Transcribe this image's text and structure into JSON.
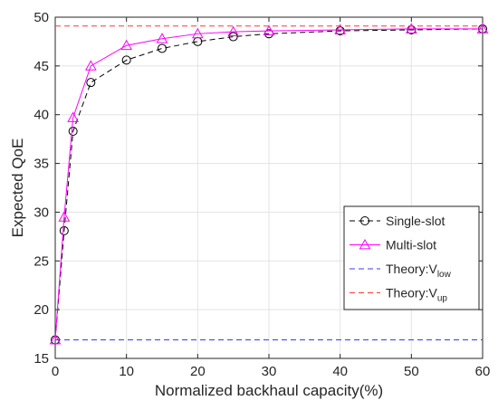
{
  "chart_data": {
    "type": "line",
    "title": "",
    "xlabel": "Normalized backhaul capacity(%)",
    "ylabel": "Expected QoE",
    "xlim": [
      0,
      60
    ],
    "ylim": [
      15,
      50
    ],
    "xticks": [
      0,
      10,
      20,
      30,
      40,
      50,
      60
    ],
    "yticks": [
      15,
      20,
      25,
      30,
      35,
      40,
      45,
      50
    ],
    "grid": true,
    "legend_position": "bottom-right",
    "series": [
      {
        "name": "Single-slot",
        "color": "#000000",
        "line_style": "dashed",
        "marker": "circle",
        "x": [
          0,
          1.25,
          2.5,
          5,
          10,
          15,
          20,
          25,
          30,
          40,
          50,
          60
        ],
        "y": [
          16.9,
          28.1,
          38.3,
          43.3,
          45.6,
          46.8,
          47.5,
          48.0,
          48.3,
          48.6,
          48.7,
          48.8
        ]
      },
      {
        "name": "Multi-slot",
        "color": "#ff00ff",
        "line_style": "solid",
        "marker": "triangle",
        "x": [
          0,
          1.25,
          2.5,
          5,
          10,
          15,
          20,
          25,
          30,
          40,
          50,
          60
        ],
        "y": [
          16.9,
          29.5,
          39.7,
          45.0,
          47.1,
          47.8,
          48.3,
          48.5,
          48.6,
          48.7,
          48.8,
          48.8
        ]
      },
      {
        "name": "Theory:V",
        "subscript": "low",
        "color": "#3a3aff",
        "line_style": "dashed",
        "marker": "none",
        "x": [
          0,
          60
        ],
        "y": [
          16.9,
          16.9
        ]
      },
      {
        "name": "Theory:V",
        "subscript": "up",
        "color": "#ff3a3a",
        "line_style": "dashed",
        "marker": "none",
        "x": [
          0,
          60
        ],
        "y": [
          49.1,
          49.1
        ]
      }
    ]
  }
}
